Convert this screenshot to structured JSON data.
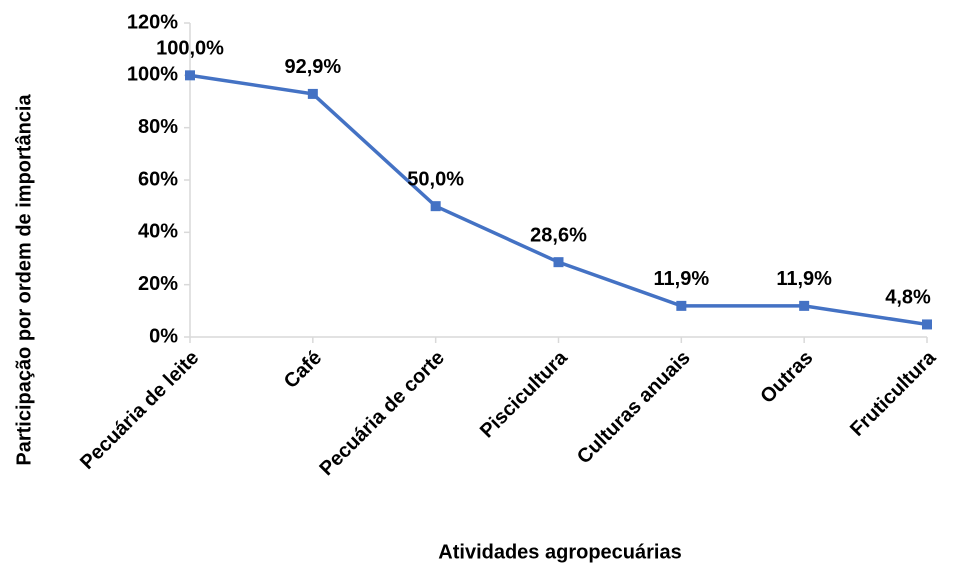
{
  "chart_data": {
    "type": "line",
    "x_label": "Atividades agropecuárias",
    "y_label": "Participação por ordem de importância",
    "categories": [
      "Pecuária de leite",
      "Café",
      "Pecuária de corte",
      "Piscicultura",
      "Culturas anuais",
      "Outras",
      "Fruticultura"
    ],
    "series": [
      {
        "name": "Participação",
        "color": "#4472c4",
        "values": [
          100,
          92.9,
          50,
          28.6,
          11.9,
          11.9,
          4.8
        ],
        "value_labels": [
          "100,0%",
          "92,9%",
          "50,0%",
          "28,6%",
          "11,9%",
          "11,9%",
          "4,8%"
        ]
      }
    ],
    "ylim": [
      0,
      120
    ],
    "yticks": [
      {
        "value": 0,
        "label": "0%"
      },
      {
        "value": 20,
        "label": "20%"
      },
      {
        "value": 40,
        "label": "40%"
      },
      {
        "value": 60,
        "label": "60%"
      },
      {
        "value": 80,
        "label": "80%"
      },
      {
        "value": 100,
        "label": "100%"
      },
      {
        "value": 120,
        "label": "120%"
      }
    ],
    "grid": false
  }
}
